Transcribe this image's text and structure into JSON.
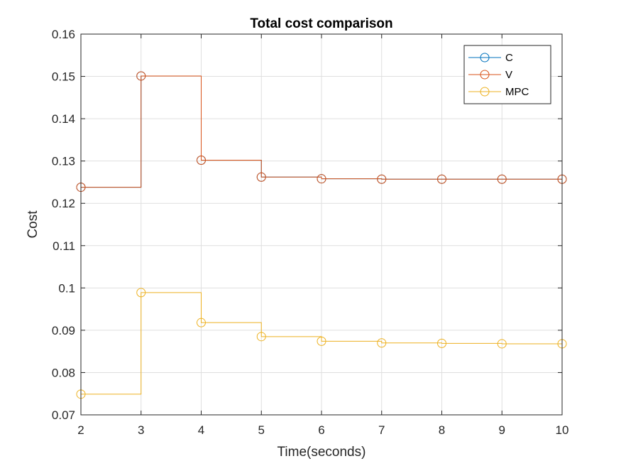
{
  "chart_data": {
    "type": "line",
    "step": true,
    "title": "Total cost comparison",
    "xlabel": "Time(seconds)",
    "ylabel": "Cost",
    "xlim": [
      2,
      10
    ],
    "ylim": [
      0.07,
      0.16
    ],
    "xticks": [
      "2",
      "3",
      "4",
      "5",
      "6",
      "7",
      "8",
      "9",
      "10"
    ],
    "yticks": [
      "0.07",
      "0.08",
      "0.09",
      "0.1",
      "0.11",
      "0.12",
      "0.13",
      "0.14",
      "0.15",
      "0.16"
    ],
    "grid": true,
    "legend_position": "top-right",
    "x": [
      2,
      3,
      4,
      5,
      6,
      7,
      8,
      9,
      10
    ],
    "series": [
      {
        "name": "C",
        "color": "#0072BD",
        "values": [
          0.1238,
          0.1501,
          0.1302,
          0.1262,
          0.1258,
          0.1257,
          0.1257,
          0.1257,
          0.1257
        ]
      },
      {
        "name": "V",
        "color": "#D95319",
        "values": [
          0.1238,
          0.1501,
          0.1302,
          0.1262,
          0.1258,
          0.1257,
          0.1257,
          0.1257,
          0.1257
        ]
      },
      {
        "name": "MPC",
        "color": "#EDB120",
        "values": [
          0.0749,
          0.0989,
          0.0918,
          0.0885,
          0.0874,
          0.087,
          0.0869,
          0.0868,
          0.0868
        ]
      }
    ]
  }
}
